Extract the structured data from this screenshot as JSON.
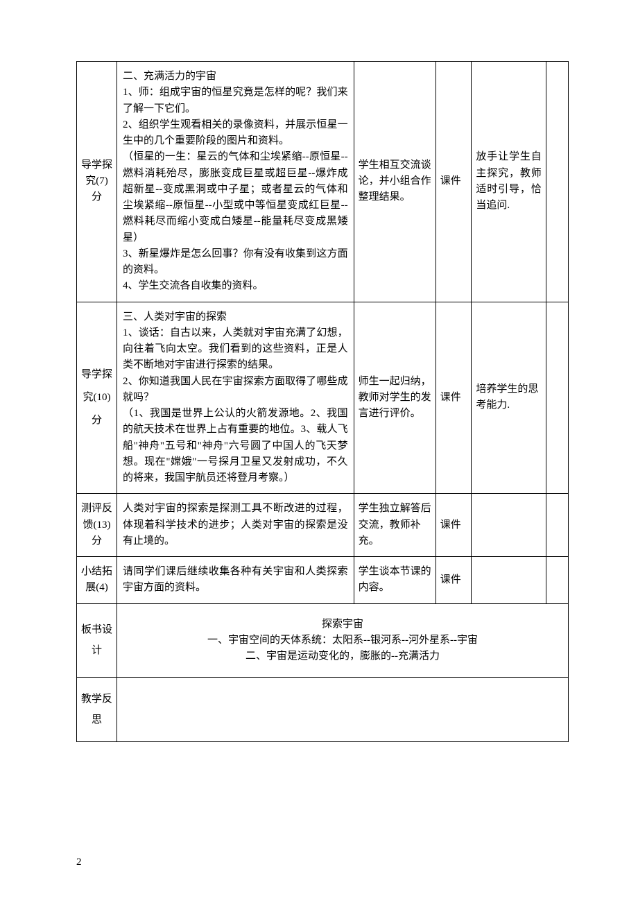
{
  "table": {
    "columns": {
      "widths": [
        54,
        318,
        110,
        48,
        100,
        30
      ]
    },
    "rows": [
      {
        "phase": "导学探究(7)分",
        "teacher": "二、充满活力的宇宙\n1、师：组成宇宙的恒星究竟是怎样的呢？我们来了解一下它们。\n2、组织学生观看相关的录像资料，并展示恒星一生中的几个重要阶段的图片和资料。\n（恒星的一生：星云的气体和尘埃紧缩--原恒星--燃料消耗殆尽，膨胀变成巨星或超巨星--爆炸成超新星--变成黑洞或中子星；或者星云的气体和尘埃紧缩--原恒星--小型或中等恒星变成红巨星--燃料耗尽而缩小变成白矮星--能量耗尽变成黑矮星）\n3、新星爆炸是怎么回事？你有没有收集到这方面的资料。\n4、学生交流各自收集的资料。",
        "student": "学生相互交流谈论，并小组合作整理结果。",
        "media": "课件",
        "design": "放手让学生自主探究，教师适时引导，恰当追问.",
        "note": ""
      },
      {
        "phase": "导学探究(10)分",
        "teacher": "三、人类对宇宙的探索\n1、谈话：自古以来，人类就对宇宙充满了幻想，向往着飞向太空。我们看到的这些资料，正是人类不断地对宇宙进行探索的结果。\n2、你知道我国人民在宇宙探索方面取得了哪些成就吗？\n（1、我国是世界上公认的火箭发源地。2、我国的航天技术在世界上占有重要的地位。3、载人飞船\"神舟\"五号和\"神舟\"六号圆了中国人的飞天梦想。现在\"嫦娥\"一号探月卫星又发射成功，不久的将来，我国宇航员还将登月考察。）",
        "student": "师生一起归纳，教师对学生的发言进行评价。",
        "media": "课件",
        "design": "培养学生的思考能力.",
        "note": ""
      },
      {
        "phase": "测评反馈(13)分",
        "teacher": "人类对宇宙的探索是探测工具不断改进的过程，体现着科学技术的进步；人类对宇宙的探索是没有止境的。",
        "student": "学生独立解答后交流，教师补充。",
        "media": "课件",
        "design": "",
        "note": ""
      },
      {
        "phase": "小结拓展(4)",
        "teacher": "请同学们课后继续收集各种有关宇宙和人类探索宇宙方面的资料。",
        "student": "学生谈本节课的内容。",
        "media": "课件",
        "design": "",
        "note": ""
      }
    ],
    "board_design": {
      "label": "板书设计",
      "line1": "探索宇宙",
      "line2": "一、宇宙空间的天体系统：太阳系--银河系--河外星系--宇宙",
      "line3": "二、宇宙是运动变化的，膨胀的--充满活力"
    },
    "reflection": {
      "label": "教学反思",
      "content": ""
    }
  },
  "page_number": "2",
  "styling": {
    "page_bg": "#ffffff",
    "border_color": "#000000",
    "text_color": "#000000",
    "font_size": 15,
    "line_height": 1.55
  }
}
